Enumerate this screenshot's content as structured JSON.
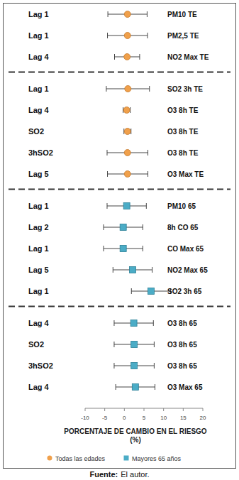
{
  "chart_data": {
    "type": "forest",
    "x_label": "PORCENTAJE DE CAMBIO EN EL RIESGO\n(%)",
    "xlim": [
      -10,
      20
    ],
    "xticks": [
      -10,
      -5,
      0,
      5,
      10,
      15,
      20
    ],
    "legend": "bottom",
    "source": {
      "label": "Fuente:",
      "text": "El autor."
    },
    "series": [
      {
        "name": "Todas las edades",
        "color": "#f0a04b",
        "marker": "circle",
        "blocks": [
          {
            "lags": [
              "Lag 1",
              "Lag 1",
              "Lag 4"
            ],
            "labels": [
              "PM10 TE",
              "PM2,5 TE",
              "NO2 Max TE"
            ],
            "values": [
              0.8,
              0.8,
              0.7
            ],
            "lower": [
              -4.2,
              -4.3,
              -2.5
            ],
            "upper": [
              5.8,
              5.9,
              3.9
            ]
          },
          {
            "lags": [
              "Lag 1",
              "Lag 4",
              "SO2",
              "3hSO2",
              "Lag 5"
            ],
            "labels": [
              "SO2 3h TE",
              "O3 8h TE",
              "O3 8h TE",
              "O3 8h TE",
              "O3 Max TE"
            ],
            "values": [
              0.9,
              0.6,
              0.8,
              0.8,
              0.8
            ],
            "lower": [
              -4.6,
              -0.3,
              -0.1,
              -4.4,
              -4.3
            ],
            "upper": [
              6.4,
              1.5,
              1.7,
              6.0,
              6.0
            ]
          }
        ]
      },
      {
        "name": "Mayores 65 años",
        "color": "#4bacc6",
        "marker": "square",
        "blocks": [
          {
            "lags": [
              "Lag 1",
              "Lag 2",
              "Lag 1",
              "Lag 5",
              "Lag 1"
            ],
            "labels": [
              "PM10 65",
              "8h CO 65",
              "CO Max 65",
              "NO2 Max 65",
              "SO2 3h 65"
            ],
            "values": [
              0.6,
              -0.3,
              -0.3,
              2.1,
              6.8
            ],
            "lower": [
              -4.4,
              -5.3,
              -5.3,
              -2.9,
              1.8
            ],
            "upper": [
              5.6,
              4.7,
              4.7,
              7.1,
              11.8
            ]
          },
          {
            "lags": [
              "Lag 4",
              "SO2",
              "3hSO2",
              "Lag 4"
            ],
            "labels": [
              "O3 8h 65",
              "O3 8h 65",
              "O3 8h 65",
              "O3 Max 65"
            ],
            "values": [
              2.4,
              2.5,
              2.5,
              2.8
            ],
            "lower": [
              -2.6,
              -2.6,
              -2.6,
              -2.2
            ],
            "upper": [
              7.4,
              7.6,
              7.6,
              7.8
            ]
          }
        ]
      }
    ]
  }
}
